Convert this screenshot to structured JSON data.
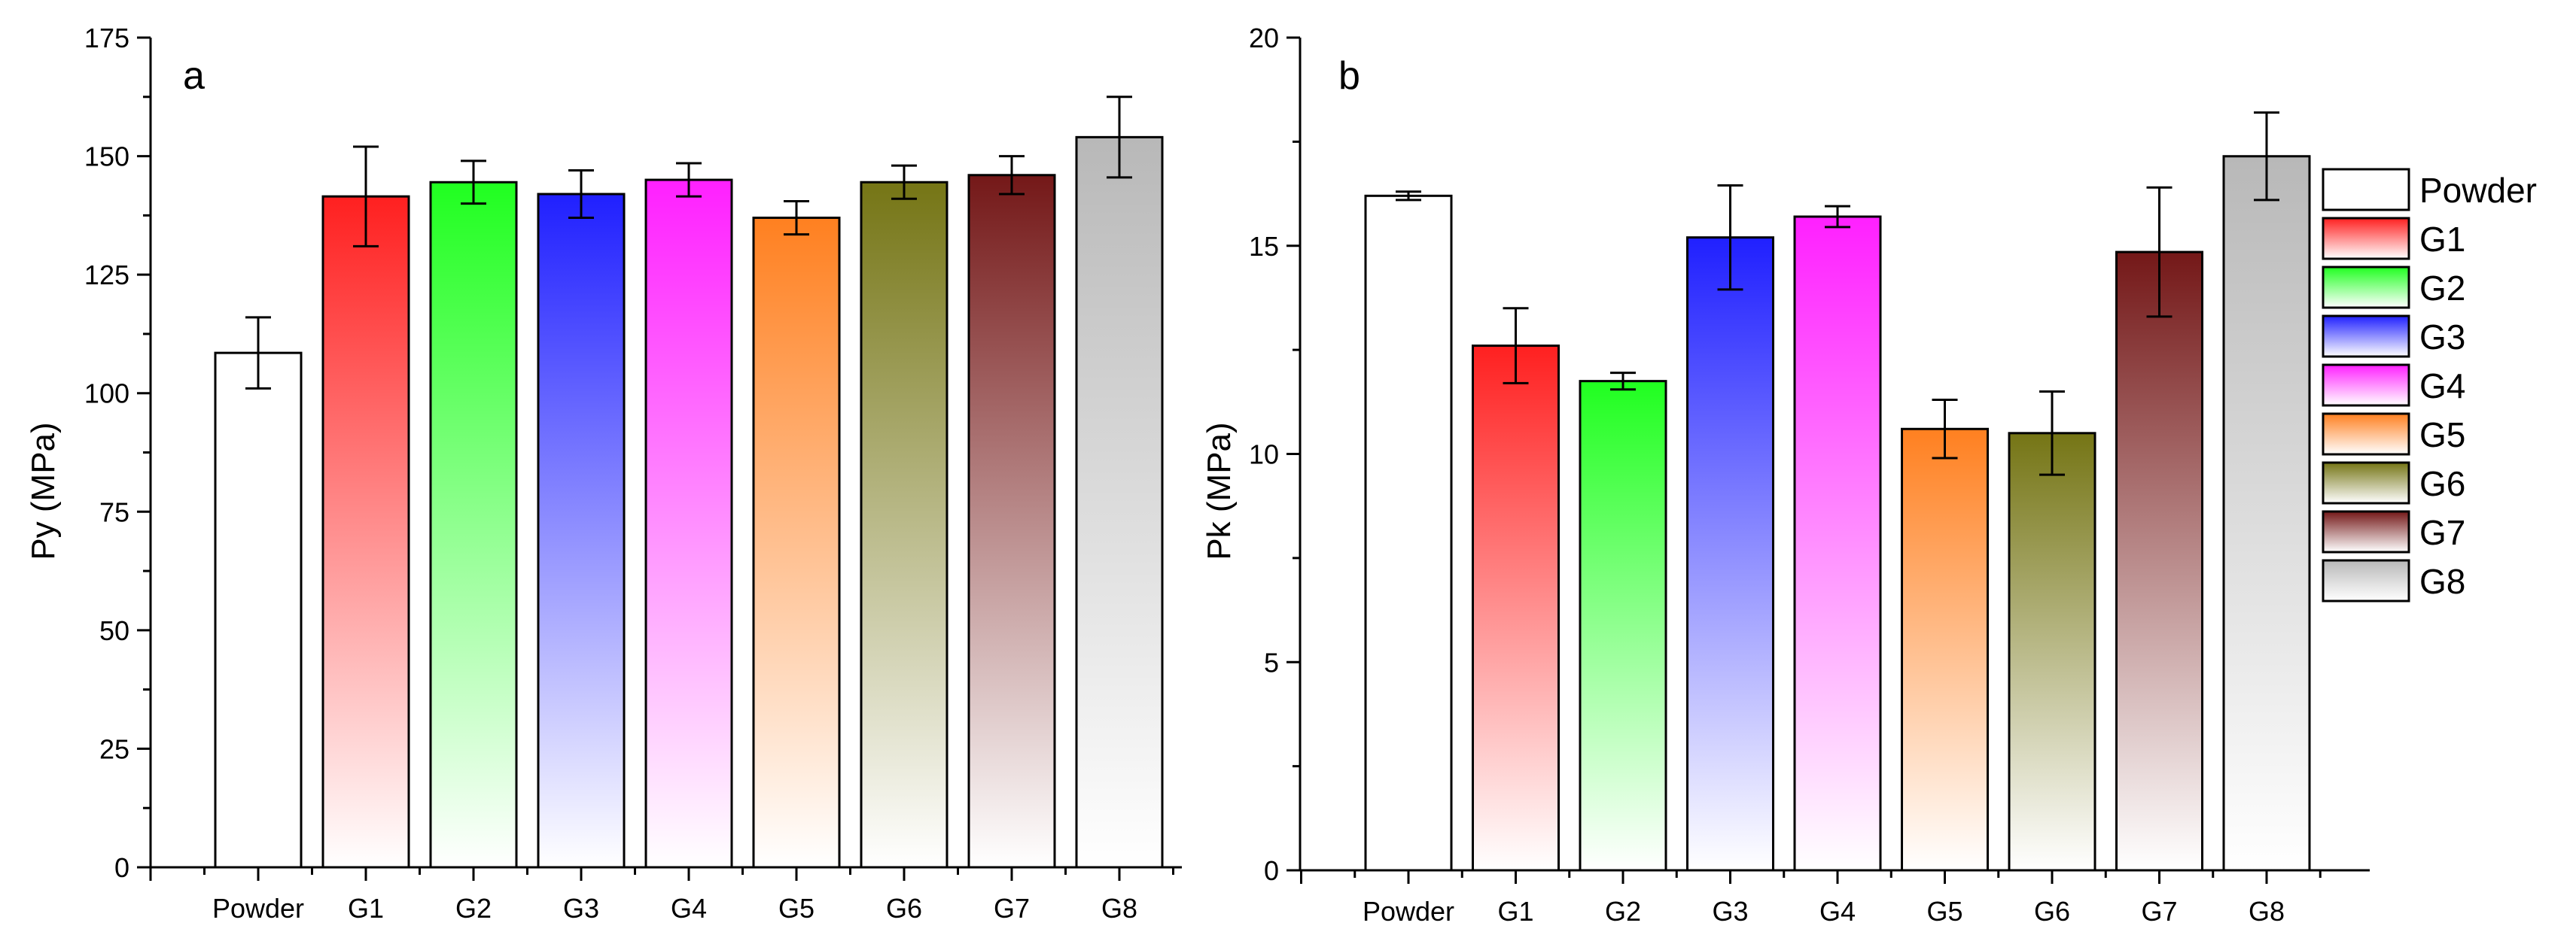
{
  "series_colors": {
    "Powder": "#ffffff",
    "G1": "#ff2020",
    "G2": "#20ff20",
    "G3": "#2020ff",
    "G4": "#ff20ff",
    "G5": "#ff8020",
    "G6": "#757515",
    "G7": "#741818",
    "G8": "#b8b8b8"
  },
  "chart_data": [
    {
      "type": "bar",
      "panel_label": "a",
      "title": "",
      "xlabel": "",
      "ylabel": "Py (MPa)",
      "categories": [
        "Powder",
        "G1",
        "G2",
        "G3",
        "G4",
        "G5",
        "G6",
        "G7",
        "G8"
      ],
      "values": [
        108.5,
        141.5,
        144.5,
        142,
        145,
        137,
        144.5,
        146,
        154
      ],
      "errors": [
        7.5,
        10.5,
        4.5,
        5,
        3.5,
        3.5,
        3.5,
        4,
        8.5
      ],
      "ylim": [
        0,
        175
      ],
      "yticks": [
        0,
        25,
        50,
        75,
        100,
        125,
        150,
        175
      ],
      "ytick_labels": [
        "0",
        "25",
        "50",
        "75",
        "100",
        "125",
        "150",
        "175"
      ],
      "grid": false
    },
    {
      "type": "bar",
      "panel_label": "b",
      "title": "",
      "xlabel": "",
      "ylabel": "Pk (MPa)",
      "categories": [
        "Powder",
        "G1",
        "G2",
        "G3",
        "G4",
        "G5",
        "G6",
        "G7",
        "G8"
      ],
      "values": [
        16.2,
        12.6,
        11.75,
        15.2,
        15.7,
        10.6,
        10.5,
        14.85,
        17.15
      ],
      "errors": [
        0.1,
        0.9,
        0.2,
        1.25,
        0.25,
        0.7,
        1.0,
        1.55,
        1.05
      ],
      "ylim": [
        0,
        20
      ],
      "yticks": [
        0,
        5,
        10,
        15,
        20
      ],
      "ytick_labels": [
        "0",
        "5",
        "10",
        "15",
        "20"
      ],
      "grid": false,
      "legend": {
        "placement": "right",
        "entries": [
          "Powder",
          "G1",
          "G2",
          "G3",
          "G4",
          "G5",
          "G6",
          "G7",
          "G8"
        ]
      }
    }
  ]
}
